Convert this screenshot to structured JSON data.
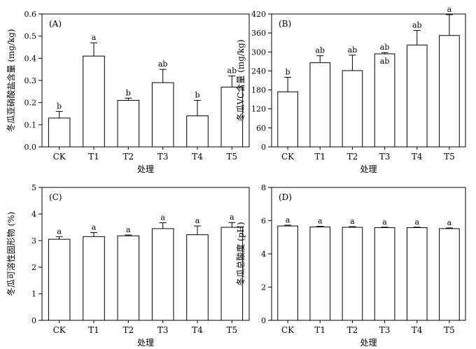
{
  "chart_data": [
    {
      "type": "bar",
      "panel_label": "(A)",
      "categories": [
        "CK",
        "T1",
        "T2",
        "T3",
        "T4",
        "T5"
      ],
      "values": [
        0.13,
        0.41,
        0.21,
        0.29,
        0.14,
        0.27
      ],
      "errors": [
        0.03,
        0.06,
        0.01,
        0.06,
        0.07,
        0.05
      ],
      "letters": [
        "b",
        "a",
        "b",
        "ab",
        "b",
        "ab"
      ],
      "xlabel": "处理",
      "ylabel": "冬瓜亚硝酸盐含量 (mg/kg)",
      "ylim": [
        0,
        0.6
      ],
      "yticks": [
        0.0,
        0.1,
        0.2,
        0.3,
        0.4,
        0.5,
        0.6
      ],
      "ytick_labels": [
        "0.0",
        "0.1",
        "0.2",
        "0.3",
        "0.4",
        "0.5",
        "0.6"
      ]
    },
    {
      "type": "bar",
      "panel_label": "(B)",
      "categories": [
        "CK",
        "T1",
        "T2",
        "T3",
        "T4",
        "T5"
      ],
      "values": [
        174,
        266,
        241,
        294,
        322,
        352
      ],
      "errors": [
        46,
        22,
        49,
        4,
        46,
        66
      ],
      "letters": [
        "b",
        "ab",
        "ab",
        "ab",
        "ab",
        "a"
      ],
      "letters_below": [
        "",
        "",
        "",
        "ab",
        "",
        ""
      ],
      "xlabel": "处理",
      "ylabel": "冬瓜VC含量 (mg/kg)",
      "ylim": [
        0,
        420
      ],
      "yticks": [
        0,
        60,
        120,
        180,
        240,
        300,
        360,
        420
      ],
      "ytick_labels": [
        "0",
        "60",
        "120",
        "180",
        "240",
        "300",
        "360",
        "420"
      ]
    },
    {
      "type": "bar",
      "panel_label": "(C)",
      "categories": [
        "CK",
        "T1",
        "T2",
        "T3",
        "T4",
        "T5"
      ],
      "values": [
        3.05,
        3.15,
        3.18,
        3.45,
        3.22,
        3.5
      ],
      "errors": [
        0.1,
        0.15,
        0.03,
        0.22,
        0.33,
        0.18
      ],
      "letters": [
        "a",
        "a",
        "a",
        "a",
        "a",
        "a"
      ],
      "xlabel": "处理",
      "ylabel": "冬瓜可溶性固形物 (%)",
      "ylim": [
        0,
        5
      ],
      "yticks": [
        0,
        1,
        2,
        3,
        4,
        5
      ],
      "ytick_labels": [
        "0",
        "1",
        "2",
        "3",
        "4",
        "5"
      ]
    },
    {
      "type": "bar",
      "panel_label": "(D)",
      "categories": [
        "CK",
        "T1",
        "T2",
        "T3",
        "T4",
        "T5"
      ],
      "values": [
        5.68,
        5.62,
        5.6,
        5.58,
        5.58,
        5.52
      ],
      "errors": [
        0.05,
        0.04,
        0.04,
        0.03,
        0.03,
        0.04
      ],
      "letters": [
        "a",
        "a",
        "a",
        "a",
        "a",
        "a"
      ],
      "xlabel": "处理",
      "ylabel": "冬瓜总酸度 (pH)",
      "ylim": [
        0,
        8
      ],
      "yticks": [
        0,
        2,
        4,
        6,
        8
      ],
      "ytick_labels": [
        "0",
        "2",
        "4",
        "6",
        "8"
      ]
    }
  ]
}
